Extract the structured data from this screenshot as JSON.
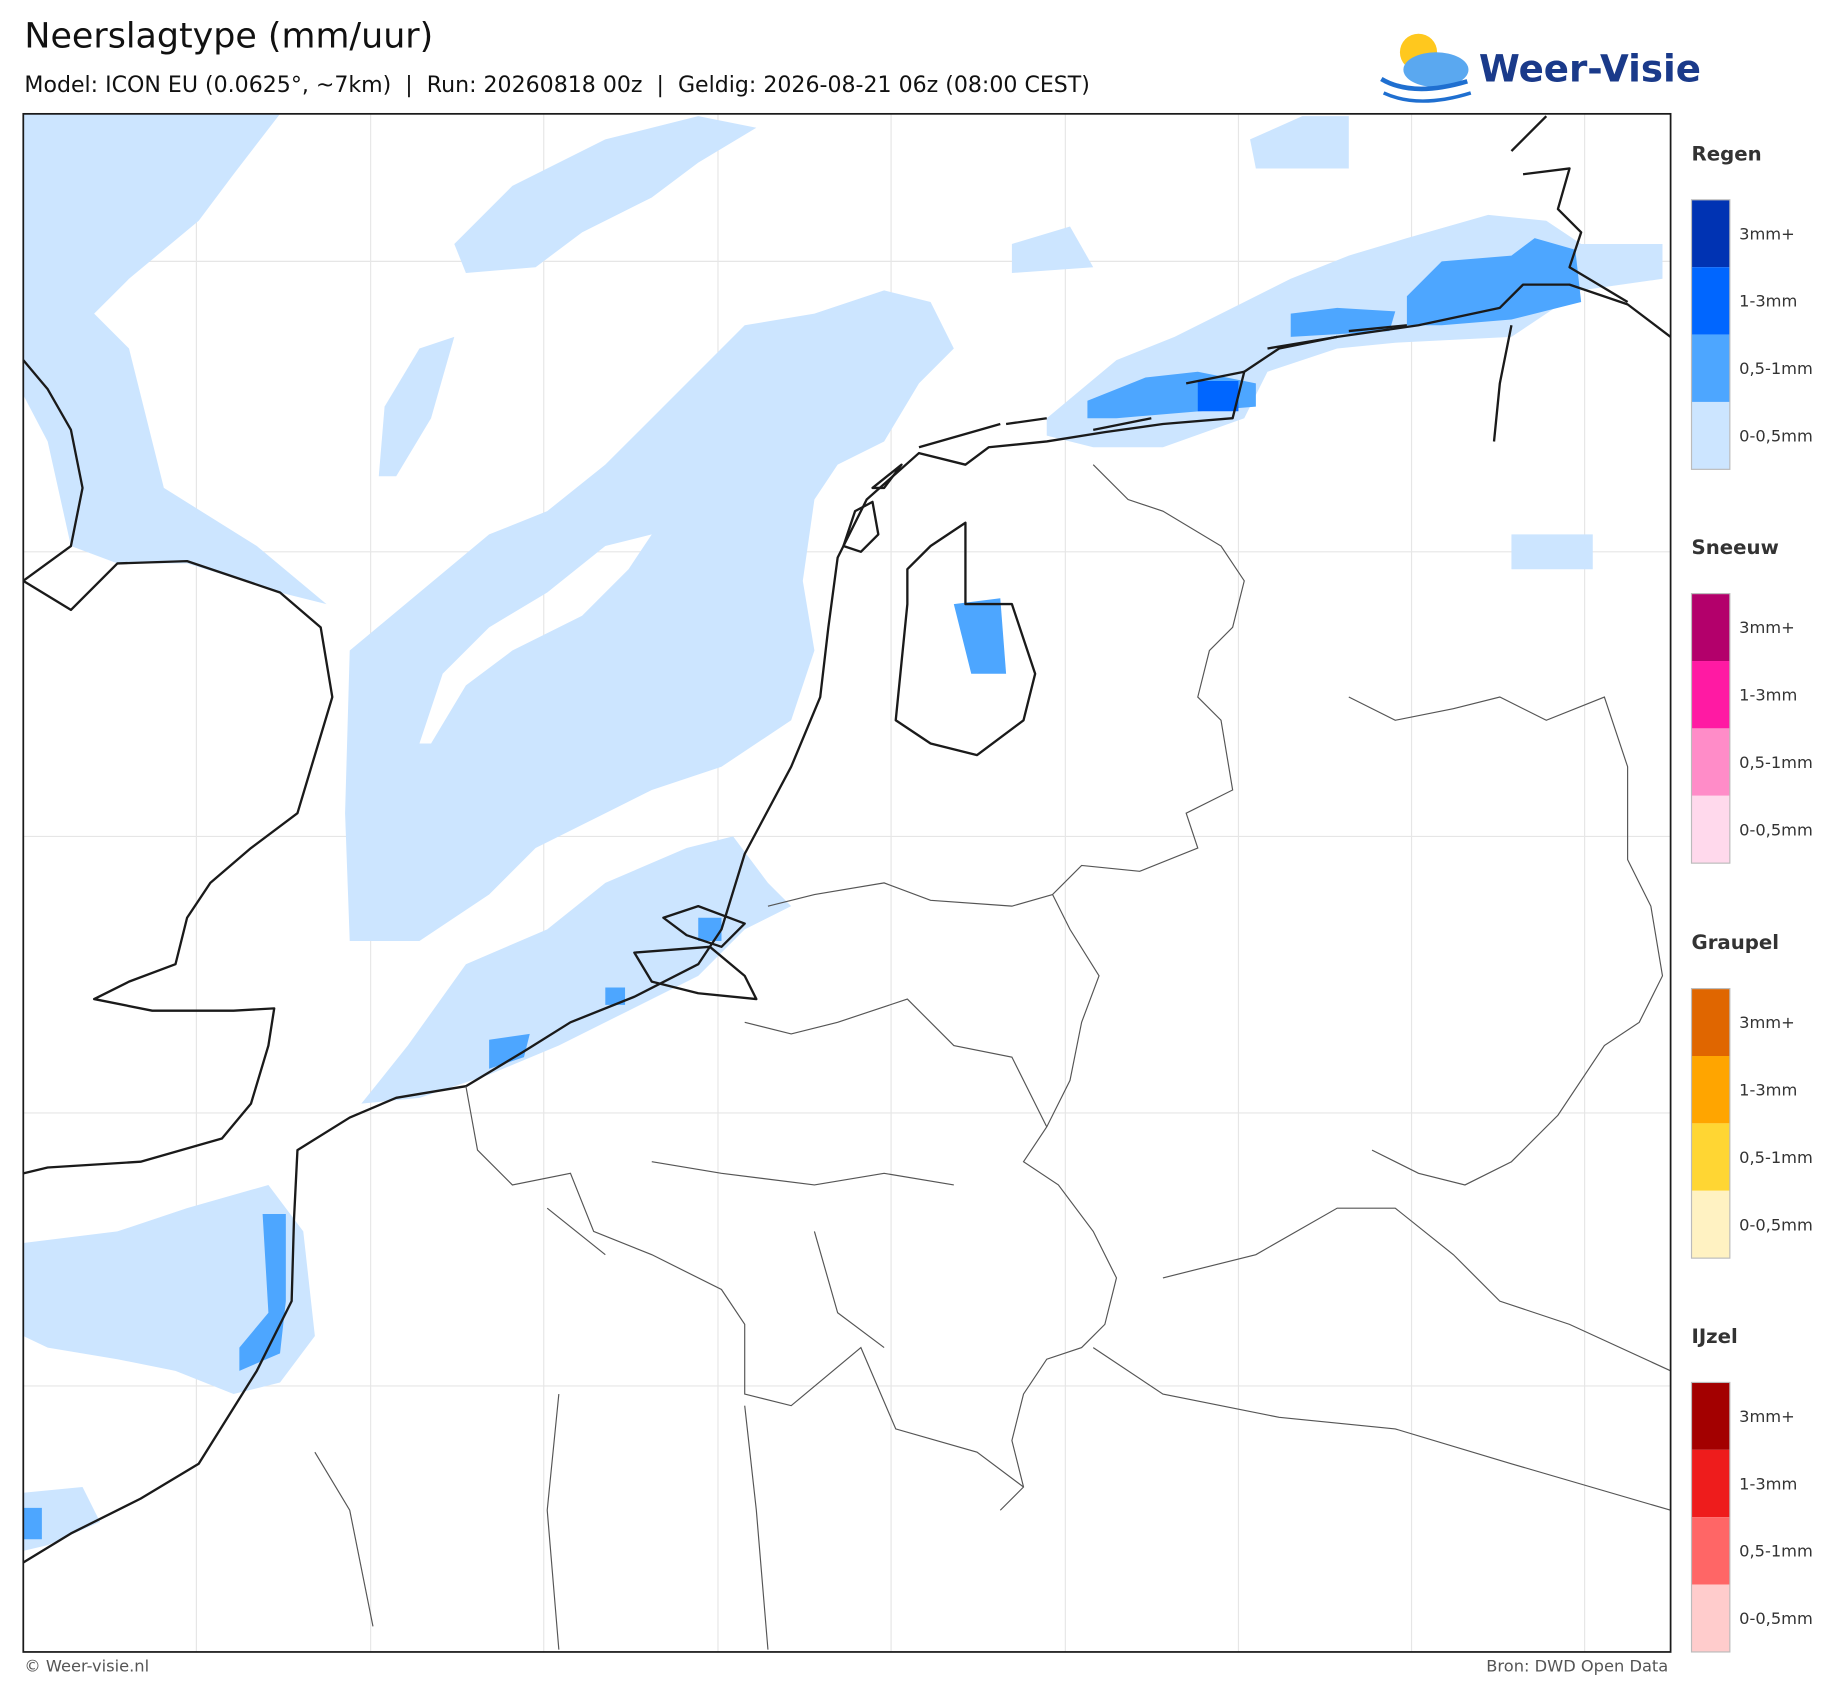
{
  "header": {
    "title": "Neerslagtype (mm/uur)",
    "subtitle": "Model: ICON EU (0.0625°, ~7km)  |  Run: 20260818 00z  |  Geldig: 2026-08-21 06z (08:00 CEST)"
  },
  "logo": "Weer-Visie",
  "legend": [
    {
      "title": "Regen",
      "items": [
        {
          "label": "3mm+",
          "color": "#0033b3"
        },
        {
          "label": "1-3mm",
          "color": "#0066ff"
        },
        {
          "label": "0,5-1mm",
          "color": "#4da6ff"
        },
        {
          "label": "0-0,5mm",
          "color": "#cce5ff"
        }
      ]
    },
    {
      "title": "Sneeuw",
      "items": [
        {
          "label": "3mm+",
          "color": "#b3006b"
        },
        {
          "label": "1-3mm",
          "color": "#ff1aa3"
        },
        {
          "label": "0,5-1mm",
          "color": "#ff8cc8"
        },
        {
          "label": "0-0,5mm",
          "color": "#ffd9ec"
        }
      ]
    },
    {
      "title": "Graupel",
      "items": [
        {
          "label": "3mm+",
          "color": "#e06600"
        },
        {
          "label": "1-3mm",
          "color": "#ffa500"
        },
        {
          "label": "0,5-1mm",
          "color": "#ffd633"
        },
        {
          "label": "0-0,5mm",
          "color": "#fff2c2"
        }
      ]
    },
    {
      "title": "IJzel",
      "items": [
        {
          "label": "3mm+",
          "color": "#a30000"
        },
        {
          "label": "1-3mm",
          "color": "#ee1c1c"
        },
        {
          "label": "0,5-1mm",
          "color": "#ff6666"
        },
        {
          "label": "0-0,5mm",
          "color": "#ffcccc"
        }
      ]
    }
  ],
  "footer": {
    "credit": "© Weer-visie.nl",
    "source": "Bron: DWD Open Data"
  }
}
